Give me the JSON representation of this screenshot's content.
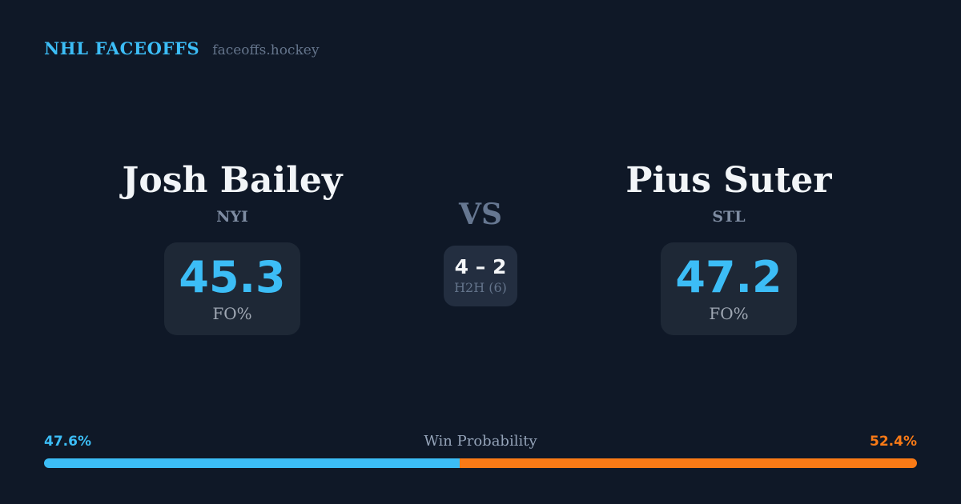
{
  "header": {
    "brand": "NHL FACEOFFS",
    "site": "faceoffs.hockey"
  },
  "matchup": {
    "left_player": {
      "name": "Josh Bailey",
      "team": "NYI",
      "stat_value": "45.3",
      "stat_label": "FO%"
    },
    "right_player": {
      "name": "Pius Suter",
      "team": "STL",
      "stat_value": "47.2",
      "stat_label": "FO%"
    },
    "vs_label": "VS",
    "h2h": {
      "score": "4 – 2",
      "label": "H2H (6)"
    }
  },
  "win_probability": {
    "title": "Win Probability",
    "left_pct_label": "47.6%",
    "right_pct_label": "52.4%",
    "left_width": "47.6%",
    "right_width": "52.4%"
  },
  "colors": {
    "background": "#0f1827",
    "card": "#1e2836",
    "accent_blue": "#3cbdf6",
    "accent_orange": "#f97a16",
    "text_primary": "#f2f5f8",
    "text_muted": "#7e8ca2"
  }
}
